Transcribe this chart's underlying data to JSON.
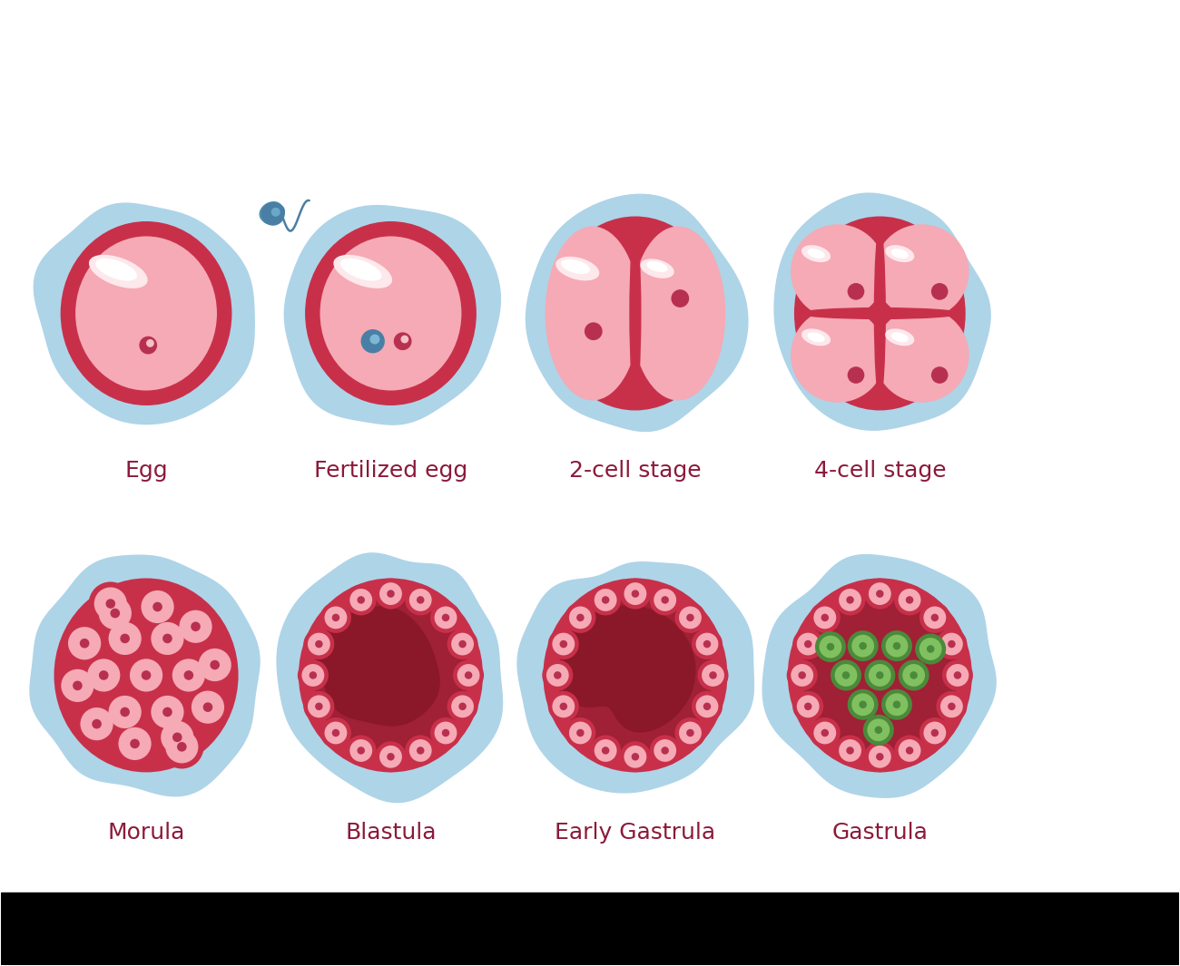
{
  "background_color": "#ffffff",
  "label_color": "#8b1a3a",
  "label_fontsize": 18,
  "labels": [
    "Egg",
    "Fertilized egg",
    "2-cell stage",
    "4-cell stage",
    "Morula",
    "Blastula",
    "Early Gastrula",
    "Gastrula"
  ],
  "outer_color": "#aed4e8",
  "ring_color": "#c8304a",
  "cell_pink": "#f5aab5",
  "cell_pink_light": "#fbd0d8",
  "nucleus_red": "#b83050",
  "sperm_color": "#4a7fa5",
  "dark_red": "#a02035",
  "darker_red": "#8a1828",
  "green_dark": "#4a8a3a",
  "green_light": "#80c060",
  "white": "#ffffff",
  "highlight_white": "#ffffff"
}
